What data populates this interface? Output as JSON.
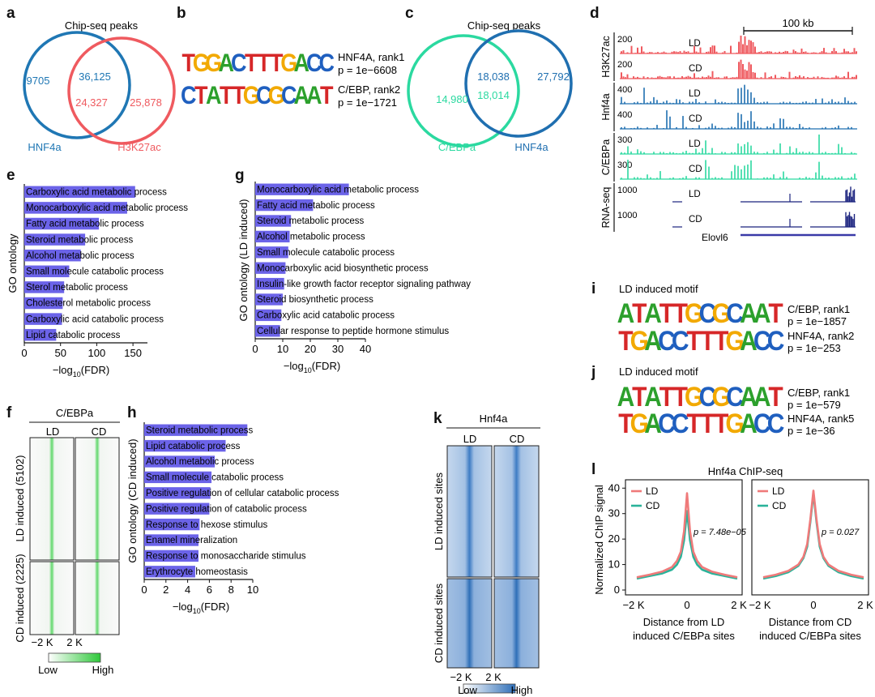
{
  "panels": {
    "a": "a",
    "b": "b",
    "c": "c",
    "d": "d",
    "e": "e",
    "f": "f",
    "g": "g",
    "h": "h",
    "i": "i",
    "j": "j",
    "k": "k",
    "l": "l"
  },
  "venn_a": {
    "title": "Chip-seq peaks",
    "left_label": "HNF4a",
    "right_label": "H3K27ac",
    "left_only": "9705",
    "overlap_top": "36,125",
    "overlap_bottom": "24,327",
    "right_only": "25,878",
    "left_color": "#1f77b4",
    "right_color": "#ef5a5f"
  },
  "venn_c": {
    "title": "Chip-seq peaks",
    "left_label": "C/EBPa",
    "right_label": "HNF4a",
    "left_only": "14,980",
    "overlap_top": "18,038",
    "overlap_bottom": "18,014",
    "right_only": "27,792",
    "left_color": "#2bd9a0",
    "right_color": "#1f6fb0"
  },
  "motif_b": [
    {
      "seq": "TGGACTTTGACC",
      "name": "HNF4A, rank1",
      "p": "p = 1e−6608"
    },
    {
      "seq": "CTATTGCGCAAT",
      "name": "C/EBP, rank2",
      "p": "p = 1e−1721"
    }
  ],
  "motif_i": {
    "title": "LD induced motif",
    "rows": [
      {
        "seq": "ATATTGCGCAAT",
        "name": "C/EBP, rank1",
        "p": "p = 1e−1857"
      },
      {
        "seq": "TGACCTTTGACC",
        "name": "HNF4A, rank2",
        "p": "p = 1e−253"
      }
    ]
  },
  "motif_j": {
    "title": "LD induced motif",
    "rows": [
      {
        "seq": "ATATTGCGCAAT",
        "name": "C/EBP, rank1",
        "p": "p = 1e−579"
      },
      {
        "seq": "TGACCTTTGACC",
        "name": "HNF4A, rank5",
        "p": "p = 1e−36"
      }
    ]
  },
  "tracks_d": {
    "scale_label": "100 kb",
    "groups": [
      {
        "name": "H3K27ac",
        "color": "#ef5a5f",
        "rows": [
          {
            "max": "200",
            "cond": "LD"
          },
          {
            "max": "200",
            "cond": "CD"
          }
        ]
      },
      {
        "name": "Hnf4a",
        "color": "#1f6fb0",
        "rows": [
          {
            "max": "400",
            "cond": "LD"
          },
          {
            "max": "400",
            "cond": "CD"
          }
        ]
      },
      {
        "name": "C/EBPa",
        "color": "#2bd9a0",
        "rows": [
          {
            "max": "300",
            "cond": "LD"
          },
          {
            "max": "300",
            "cond": "CD"
          }
        ]
      },
      {
        "name": "RNA-seq",
        "color": "#1a237e",
        "rows": [
          {
            "max": "1000",
            "cond": "LD"
          },
          {
            "max": "1000",
            "cond": "CD"
          }
        ]
      }
    ],
    "gene": "Elovl6"
  },
  "heatmap_f": {
    "title": "C/EBPa",
    "cols": [
      "LD",
      "CD"
    ],
    "row_labels": [
      "LD induced (5102)",
      "CD induced (2225)"
    ],
    "ticks": [
      "−2 K",
      "2 K"
    ],
    "legend_low": "Low",
    "legend_high": "High",
    "color": "#2ec83a"
  },
  "heatmap_k": {
    "title": "Hnf4a",
    "cols": [
      "LD",
      "CD"
    ],
    "row_labels": [
      "LD induced sites",
      "CD induced sites"
    ],
    "ticks": [
      "−2 K",
      "2 K"
    ],
    "legend_low": "Low",
    "legend_high": "High",
    "color": "#2f6fb8"
  },
  "xlabel_fdr": "−log10(FDR)",
  "chart_data": [
    {
      "id": "e",
      "type": "bar",
      "orientation": "horizontal",
      "ylabel": "GO ontology",
      "xlabel": "−log10(FDR)",
      "xlim": [
        0,
        170
      ],
      "xticks": [
        0,
        50,
        100,
        150
      ],
      "categories": [
        "Carboxylic acid metabolic process",
        "Monocarboxylic acid metabolic process",
        "Fatty acid metabolic process",
        "Steroid metabolic process",
        "Alcohol metabolic process",
        "Small molecule catabolic process",
        "Sterol metabolic process",
        "Cholesterol metabolic process",
        "Carboxylic acid catabolic process",
        "Lipid catabolic process"
      ],
      "values": [
        153,
        142,
        103,
        84,
        78,
        62,
        55,
        53,
        52,
        44
      ],
      "color": "#6b63e8"
    },
    {
      "id": "g",
      "type": "bar",
      "orientation": "horizontal",
      "ylabel": "GO ontology (LD induced)",
      "xlabel": "−log10(FDR)",
      "xlim": [
        0,
        40
      ],
      "xticks": [
        0,
        10,
        20,
        30,
        40
      ],
      "categories": [
        "Monocarboxylic acid metabolic process",
        "Fatty acid metabolic process",
        "Steroid metabolic process",
        "Alcohol metabolic process",
        "Small molecule catabolic process",
        "Monocarboxylic acid biosynthetic process",
        "Insulin-like growth factor receptor signaling pathway",
        "Steroid biosynthetic process",
        "Carboxylic acid catabolic process",
        "Cellular response to peptide hormone stimulus"
      ],
      "values": [
        34,
        21,
        13,
        12.5,
        12,
        11,
        10.5,
        10,
        9.5,
        9
      ],
      "color": "#6b63e8"
    },
    {
      "id": "h",
      "type": "bar",
      "orientation": "horizontal",
      "ylabel": "GO ontology (CD induced)",
      "xlabel": "−log10(FDR)",
      "xlim": [
        0,
        10
      ],
      "xticks": [
        0,
        2,
        4,
        6,
        8,
        10
      ],
      "categories": [
        "Steroid metabolic process",
        "Lipid catabolic process",
        "Alcohol metabolic process",
        "Small molecule catabolic process",
        "Positive regulation of cellular catabolic process",
        "Positive regulation of catabolic process",
        "Response to hexose stimulus",
        "Enamel mineralization",
        "Response to monosaccharide stimulus",
        "Erythrocyte homeostasis"
      ],
      "values": [
        9.5,
        7.5,
        6.5,
        6.2,
        6.1,
        6.0,
        5.1,
        5.0,
        5.0,
        4.7
      ],
      "color": "#6b63e8"
    },
    {
      "id": "l",
      "type": "line",
      "title": "Hnf4a ChIP-seq",
      "ylabel": "Normalized ChIP signal",
      "ylim": [
        0,
        42
      ],
      "yticks": [
        0,
        10,
        20,
        30,
        40
      ],
      "xticks": [
        "−2 K",
        "0",
        "2 K"
      ],
      "panels": [
        {
          "xlabel": "Distance from LD induced C/EBPa sites",
          "p": "p = 7.48e−05",
          "x": [
            -2000,
            -1500,
            -1000,
            -600,
            -400,
            -250,
            -120,
            0,
            120,
            250,
            400,
            600,
            1000,
            1500,
            2000
          ],
          "series": [
            {
              "name": "LD",
              "color": "#ef7a7a",
              "values": [
                5,
                6,
                7.2,
                9,
                11.5,
                15,
                23,
                38,
                23,
                15,
                11.5,
                9,
                7.2,
                6,
                5
              ]
            },
            {
              "name": "CD",
              "color": "#2ab39a",
              "values": [
                4.5,
                5.5,
                6.5,
                8,
                10,
                13,
                19.5,
                31,
                19.5,
                13,
                10,
                8,
                6.5,
                5.5,
                4.5
              ]
            }
          ]
        },
        {
          "xlabel": "Distance from CD induced C/EBPa sites",
          "p": "p = 0.027",
          "x": [
            -2000,
            -1500,
            -1000,
            -600,
            -400,
            -250,
            -120,
            0,
            120,
            250,
            400,
            600,
            1000,
            1500,
            2000
          ],
          "series": [
            {
              "name": "LD",
              "color": "#ef7a7a",
              "values": [
                5,
                6,
                7.5,
                10,
                13,
                18,
                28,
                39,
                28,
                18,
                13,
                10,
                7.5,
                6,
                5
              ]
            },
            {
              "name": "CD",
              "color": "#2ab39a",
              "values": [
                4.5,
                5.5,
                7,
                9.5,
                12.5,
                17,
                27,
                38,
                27,
                17,
                12.5,
                9.5,
                7,
                5.5,
                4.5
              ]
            }
          ]
        }
      ]
    }
  ]
}
